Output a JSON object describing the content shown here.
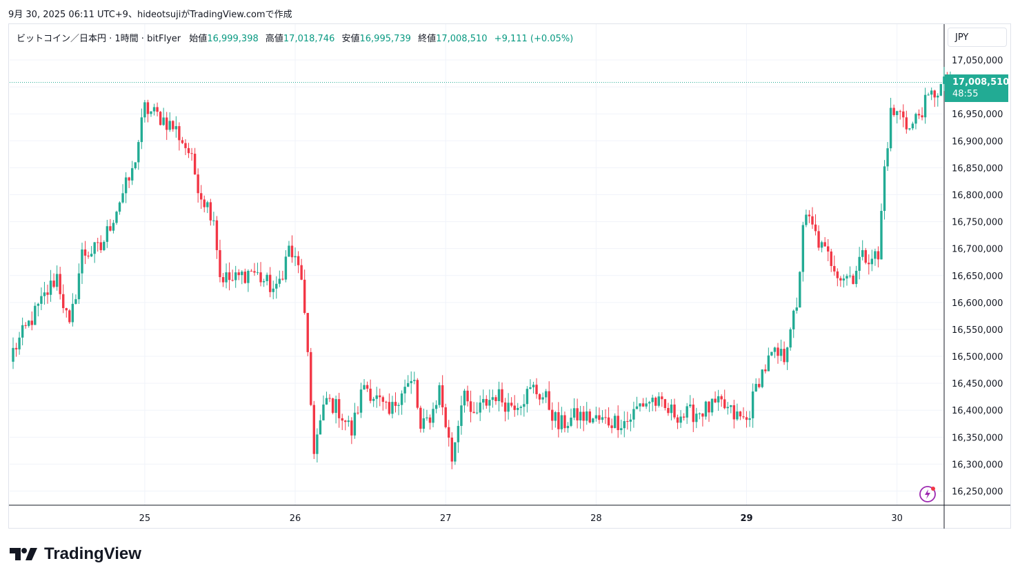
{
  "caption": "9月 30, 2025 06:11 UTC+9、hideotsujiがTradingView.comで作成",
  "legend": {
    "symbol": "ビットコイン／日本円 · 1時間 · bitFlyer",
    "open_label": "始値",
    "open": "16,999,398",
    "high_label": "高値",
    "high": "17,018,746",
    "low_label": "安値",
    "low": "16,995,739",
    "close_label": "終値",
    "close": "17,008,510",
    "change": "+9,111 (+0.05%)"
  },
  "currency": "JPY",
  "last_price": {
    "price": "17,008,510",
    "countdown": "48:55"
  },
  "brand": "TradingView",
  "icons": {
    "logo": "tradingview-logo-icon",
    "flash": "lightning-icon"
  },
  "colors": {
    "up": "#22ab94",
    "down": "#f23645",
    "grid": "#f0f3fa",
    "text": "#131722"
  },
  "chart_data": {
    "type": "candlestick",
    "interval": "1h",
    "currency": "JPY",
    "x_ticks": [
      {
        "label": "25",
        "index": 42
      },
      {
        "label": "26",
        "index": 90
      },
      {
        "label": "27",
        "index": 138
      },
      {
        "label": "28",
        "index": 186
      },
      {
        "label": "29",
        "index": 234
      },
      {
        "label": "30",
        "index": 282
      }
    ],
    "y_ticks": [
      16250000,
      16300000,
      16350000,
      16400000,
      16450000,
      16500000,
      16550000,
      16600000,
      16650000,
      16700000,
      16750000,
      16800000,
      16850000,
      16900000,
      16950000,
      17000000,
      17050000
    ],
    "y_labels": [
      "16,250,000",
      "16,300,000",
      "16,350,000",
      "16,400,000",
      "16,450,000",
      "16,500,000",
      "16,550,000",
      "16,600,000",
      "16,650,000",
      "16,700,000",
      "16,750,000",
      "16,800,000",
      "16,850,000",
      "16,900,000",
      "16,950,000",
      "",
      "17,050,000"
    ],
    "ylim": [
      16225000,
      17085000
    ],
    "last_close": 17008510,
    "key_points": [
      [
        0,
        16510000
      ],
      [
        10,
        16610000
      ],
      [
        14,
        16650000
      ],
      [
        18,
        16550000
      ],
      [
        22,
        16690000
      ],
      [
        28,
        16700000
      ],
      [
        34,
        16790000
      ],
      [
        38,
        16840000
      ],
      [
        42,
        16960000
      ],
      [
        48,
        16940000
      ],
      [
        52,
        16920000
      ],
      [
        56,
        16880000
      ],
      [
        60,
        16800000
      ],
      [
        64,
        16760000
      ],
      [
        66,
        16650000
      ],
      [
        70,
        16640000
      ],
      [
        76,
        16660000
      ],
      [
        80,
        16640000
      ],
      [
        84,
        16620000
      ],
      [
        88,
        16700000
      ],
      [
        92,
        16650000
      ],
      [
        96,
        16330000
      ],
      [
        100,
        16420000
      ],
      [
        104,
        16400000
      ],
      [
        108,
        16360000
      ],
      [
        112,
        16450000
      ],
      [
        116,
        16420000
      ],
      [
        120,
        16390000
      ],
      [
        124,
        16440000
      ],
      [
        128,
        16450000
      ],
      [
        130,
        16360000
      ],
      [
        134,
        16400000
      ],
      [
        136,
        16440000
      ],
      [
        140,
        16310000
      ],
      [
        144,
        16450000
      ],
      [
        146,
        16380000
      ],
      [
        150,
        16410000
      ],
      [
        154,
        16430000
      ],
      [
        158,
        16410000
      ],
      [
        162,
        16420000
      ],
      [
        166,
        16440000
      ],
      [
        170,
        16420000
      ],
      [
        174,
        16370000
      ],
      [
        180,
        16390000
      ],
      [
        188,
        16380000
      ],
      [
        196,
        16380000
      ],
      [
        200,
        16410000
      ],
      [
        204,
        16420000
      ],
      [
        208,
        16400000
      ],
      [
        214,
        16390000
      ],
      [
        220,
        16400000
      ],
      [
        226,
        16410000
      ],
      [
        230,
        16390000
      ],
      [
        234,
        16380000
      ],
      [
        238,
        16460000
      ],
      [
        242,
        16500000
      ],
      [
        246,
        16500000
      ],
      [
        248,
        16560000
      ],
      [
        250,
        16580000
      ],
      [
        252,
        16750000
      ],
      [
        254,
        16750000
      ],
      [
        258,
        16700000
      ],
      [
        262,
        16670000
      ],
      [
        264,
        16650000
      ],
      [
        268,
        16650000
      ],
      [
        270,
        16680000
      ],
      [
        274,
        16690000
      ],
      [
        276,
        16680000
      ],
      [
        278,
        16850000
      ],
      [
        280,
        16950000
      ],
      [
        284,
        16950000
      ],
      [
        286,
        16920000
      ],
      [
        290,
        16960000
      ],
      [
        294,
        16990000
      ],
      [
        298,
        17008510
      ]
    ]
  }
}
